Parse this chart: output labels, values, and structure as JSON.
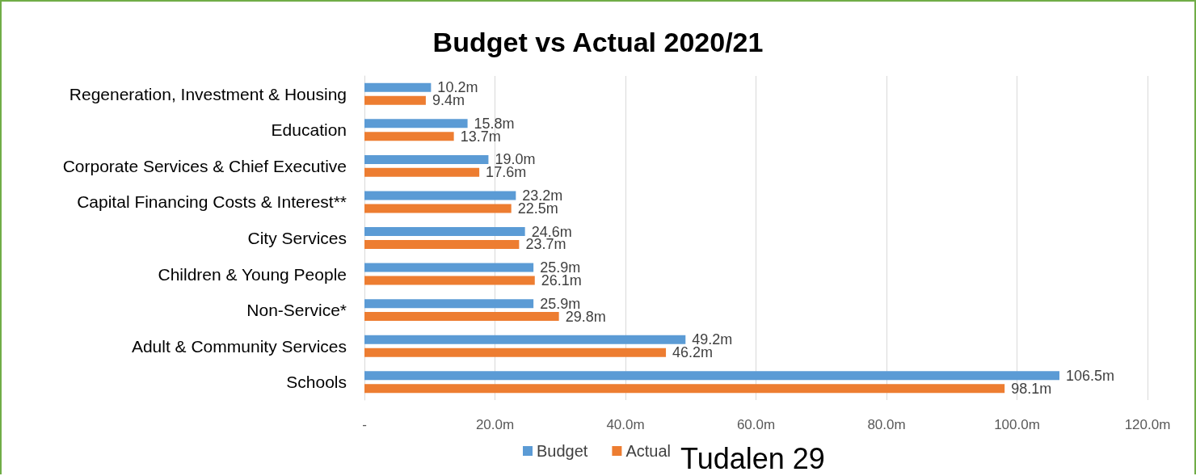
{
  "chart_data": {
    "type": "bar",
    "orientation": "horizontal",
    "title": "Budget vs Actual 2020/21",
    "categories": [
      "Regeneration, Investment & Housing",
      "Education",
      "Corporate Services & Chief Executive",
      "Capital Financing Costs & Interest**",
      "City Services",
      "Children & Young People",
      "Non-Service*",
      "Adult & Community Services",
      "Schools"
    ],
    "series": [
      {
        "name": "Budget",
        "color": "#5b9bd5",
        "values": [
          10.2,
          15.8,
          19.0,
          23.2,
          24.6,
          25.9,
          25.9,
          49.2,
          106.5
        ],
        "value_labels": [
          "10.2m",
          "15.8m",
          "19.0m",
          "23.2m",
          "24.6m",
          "25.9m",
          "25.9m",
          "49.2m",
          "106.5m"
        ]
      },
      {
        "name": "Actual",
        "color": "#ed7d31",
        "values": [
          9.4,
          13.7,
          17.6,
          22.5,
          23.7,
          26.1,
          29.8,
          46.2,
          98.1
        ],
        "value_labels": [
          "9.4m",
          "13.7m",
          "17.6m",
          "22.5m",
          "23.7m",
          "26.1m",
          "29.8m",
          "46.2m",
          "98.1m"
        ]
      }
    ],
    "xlim": [
      0,
      120
    ],
    "xticks": [
      {
        "value": 0,
        "label": "-"
      },
      {
        "value": 20,
        "label": "20.0m"
      },
      {
        "value": 40,
        "label": "40.0m"
      },
      {
        "value": 60,
        "label": "60.0m"
      },
      {
        "value": 80,
        "label": "80.0m"
      },
      {
        "value": 100,
        "label": "100.0m"
      },
      {
        "value": 120,
        "label": "120.0m"
      }
    ],
    "grid": "x",
    "legend": "bottom",
    "annotations": [
      "Tudalen 29"
    ]
  }
}
